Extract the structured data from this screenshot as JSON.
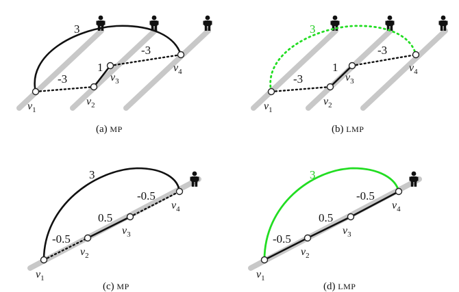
{
  "panels": {
    "a": {
      "caption_prefix": "(a) ",
      "caption_method": "MP",
      "edge_labels": {
        "v1_v4": "3",
        "v1_v2": "-3",
        "v2_v3": "1",
        "v3_v4": "-3"
      }
    },
    "b": {
      "caption_prefix": "(b) ",
      "caption_method": "LMP",
      "edge_labels": {
        "v1_v4": "3",
        "v1_v2": "-3",
        "v2_v3": "1",
        "v3_v4": "-3"
      }
    },
    "c": {
      "caption_prefix": "(c) ",
      "caption_method": "MP",
      "edge_labels": {
        "v1_v4": "3",
        "v1_v2": "-0.5",
        "v2_v3": "0.5",
        "v3_v4": "-0.5"
      }
    },
    "d": {
      "caption_prefix": "(d) ",
      "caption_method": "LMP",
      "edge_labels": {
        "v1_v4": "3",
        "v1_v2": "-0.5",
        "v2_v3": "0.5",
        "v3_v4": "-0.5"
      }
    }
  },
  "node_labels": {
    "v1": {
      "base": "v",
      "sub": "1"
    },
    "v2": {
      "base": "v",
      "sub": "2"
    },
    "v3": {
      "base": "v",
      "sub": "3"
    },
    "v4": {
      "base": "v",
      "sub": "4"
    }
  },
  "colors": {
    "track": "#c8c8c8",
    "edge": "#111111",
    "lifted_edge_highlight": "#22dd22"
  },
  "icons": {
    "person": "person-icon"
  }
}
